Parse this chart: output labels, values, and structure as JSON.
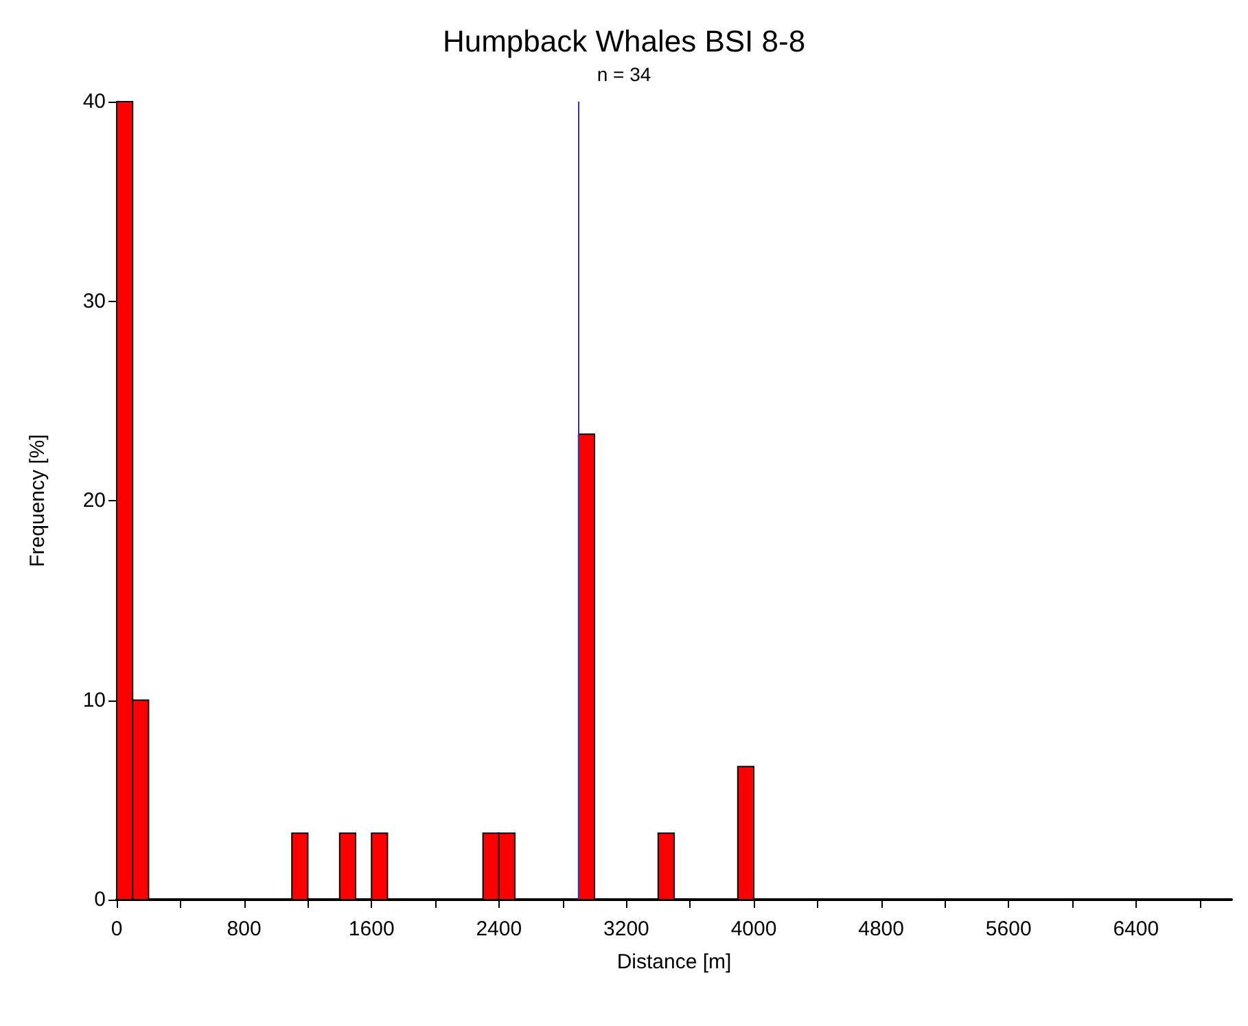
{
  "chart_data": {
    "type": "histogram",
    "title": "Humpback Whales BSI 8-8",
    "subtitle": "n = 34",
    "xlabel": "Distance [m]",
    "ylabel": "Frequency [%]",
    "bins": [
      0,
      100,
      200,
      300,
      400,
      500,
      600,
      700,
      800,
      900,
      1000,
      1100,
      1200,
      1300,
      1400,
      1500,
      1600,
      1700,
      1800,
      1900,
      2000,
      2100,
      2200,
      2300,
      2400,
      2500,
      2600,
      2700,
      2800,
      2900,
      3000,
      3100,
      3200,
      3300,
      3400,
      3500,
      3600,
      3700,
      3800,
      3900,
      4000
    ],
    "values": [
      40,
      10,
      0,
      0,
      0,
      0,
      0,
      0,
      0,
      0,
      0,
      3.33,
      0,
      0,
      3.33,
      0,
      3.33,
      0,
      0,
      0,
      0,
      0,
      0,
      3.33,
      3.33,
      0,
      0,
      0,
      0,
      23.33,
      0,
      0,
      0,
      0,
      3.33,
      0,
      0,
      0,
      0,
      6.67
    ],
    "color": "#ff0000",
    "xlim": [
      0,
      7000
    ],
    "xticks": [
      0,
      {
        "value": 400,
        "label": null
      },
      800,
      {
        "value": 1200,
        "label": null
      },
      1600,
      {
        "value": 2000,
        "label": null
      },
      2400,
      {
        "value": 2800,
        "label": null
      },
      3200,
      {
        "value": 3600,
        "label": null
      },
      4000,
      {
        "value": 4400,
        "label": null
      },
      4800,
      {
        "value": 5200,
        "label": null
      },
      5600,
      {
        "value": 6000,
        "label": null
      },
      6400,
      {
        "value": 6800,
        "label": null
      }
    ],
    "ylim": [
      0,
      40
    ],
    "yticks": [
      0,
      10,
      20,
      30,
      40
    ],
    "ref_lines": [
      {
        "axis": "x",
        "value": 2900,
        "color": "#3333aa"
      }
    ],
    "grid": false
  }
}
